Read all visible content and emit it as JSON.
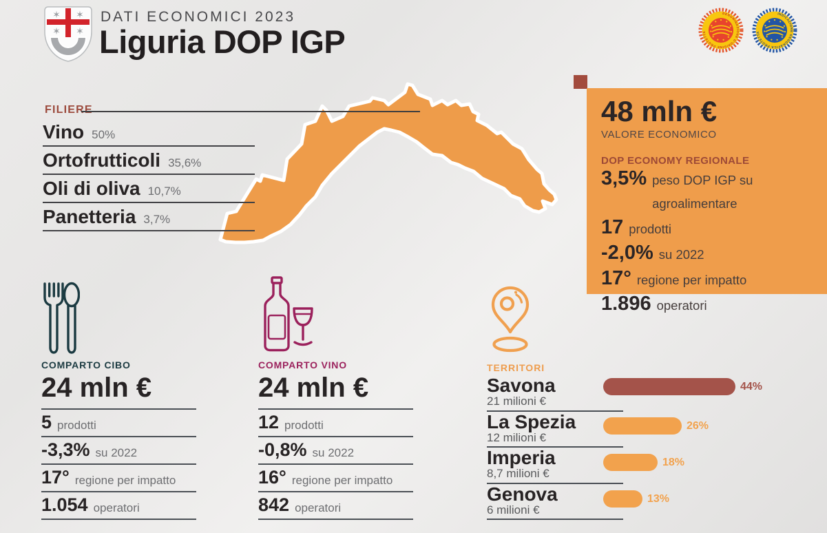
{
  "header": {
    "kicker": "DATI ECONOMICI 2023",
    "title": "Liguria DOP IGP",
    "badges": {
      "dop_ring_text": "DENOMINAZIONE D'ORIGINE PROTETTA",
      "igp_ring_text": "INDICAZIONE GEOGRAFICA PROTETTA"
    }
  },
  "filiere": {
    "label": "FILIERE",
    "items": [
      {
        "name": "Vino",
        "share": "50%"
      },
      {
        "name": "Ortofrutticoli",
        "share": "35,6%"
      },
      {
        "name": "Oli di oliva",
        "share": "10,7%"
      },
      {
        "name": "Panetteria",
        "share": "3,7%"
      }
    ]
  },
  "summary_panel": {
    "value": "48 mln €",
    "value_label": "VALORE ECONOMICO",
    "section_label": "DOP ECONOMY REGIONALE",
    "stats": [
      {
        "value": "3,5%",
        "label": "peso DOP IGP su agroalimentare"
      },
      {
        "value": "17",
        "label": "prodotti"
      },
      {
        "value": "-2,0%",
        "label": "su 2022"
      },
      {
        "value": "17°",
        "label": "regione per impatto"
      },
      {
        "value": "1.896",
        "label": "operatori"
      }
    ]
  },
  "comparto_cibo": {
    "label": "COMPARTO CIBO",
    "value": "24 mln €",
    "stats": [
      {
        "value": "5",
        "label": "prodotti"
      },
      {
        "value": "-3,3%",
        "label": "su 2022"
      },
      {
        "value": "17°",
        "label": "regione per impatto"
      },
      {
        "value": "1.054",
        "label": "operatori"
      }
    ]
  },
  "comparto_vino": {
    "label": "COMPARTO VINO",
    "value": "24 mln €",
    "stats": [
      {
        "value": "12",
        "label": "prodotti"
      },
      {
        "value": "-0,8%",
        "label": "su 2022"
      },
      {
        "value": "16°",
        "label": "regione per impatto"
      },
      {
        "value": "842",
        "label": "operatori"
      }
    ]
  },
  "territori": {
    "label": "TERRITORI",
    "items": [
      {
        "name": "Savona",
        "amount": "21 milioni €",
        "percent": "44%",
        "value": 44,
        "highlight": true
      },
      {
        "name": "La Spezia",
        "amount": "12 milioni €",
        "percent": "26%",
        "value": 26,
        "highlight": false
      },
      {
        "name": "Imperia",
        "amount": "8,7 milioni €",
        "percent": "18%",
        "value": 18,
        "highlight": false
      },
      {
        "name": "Genova",
        "amount": "6 milioni €",
        "percent": "13%",
        "value": 13,
        "highlight": false
      }
    ]
  },
  "colors": {
    "orange": "#ee9d4e",
    "panel_orange": "#ef9d4b",
    "brick": "#a4534a",
    "dark_red_label": "#9c4a3d",
    "teal": "#1b3a41",
    "wine": "#9b215c",
    "text_dark": "#272324",
    "text_gray": "#6d6e71"
  },
  "chart_data": [
    {
      "type": "bar",
      "orientation": "horizontal",
      "title": "TERRITORI",
      "categories": [
        "Savona",
        "La Spezia",
        "Imperia",
        "Genova"
      ],
      "values": [
        44,
        26,
        18,
        13
      ],
      "value_labels": [
        "44%",
        "26%",
        "18%",
        "13%"
      ],
      "secondary_labels": [
        "21 milioni €",
        "12 milioni €",
        "8,7 milioni €",
        "6 milioni €"
      ],
      "xlim": [
        0,
        50
      ],
      "grid": false,
      "legend": false
    },
    {
      "type": "table",
      "title": "FILIERE",
      "categories": [
        "Vino",
        "Ortofrutticoli",
        "Oli di oliva",
        "Panetteria"
      ],
      "values": [
        50,
        35.6,
        10.7,
        3.7
      ],
      "value_labels": [
        "50%",
        "35,6%",
        "10,7%",
        "3,7%"
      ]
    }
  ]
}
